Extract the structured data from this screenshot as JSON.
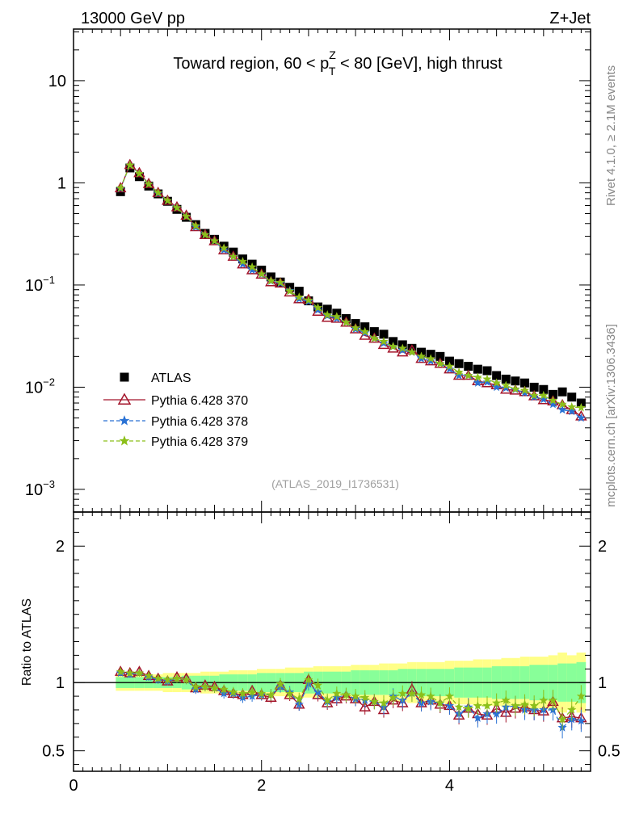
{
  "header": {
    "left": "13000 GeV pp",
    "right": "Z+Jet"
  },
  "side_labels": {
    "top": "Rivet 4.1.0, ≥ 2.1M events",
    "bottom": "mcplots.cern.ch [arXiv:1306.3436]"
  },
  "analysis_id": "(ATLAS_2019_I1736531)",
  "colors": {
    "atlas": "#000000",
    "p370": "#a3142a",
    "p378": "#2a72d4",
    "p379": "#8cbf1a",
    "band_outer": "#ffff88",
    "band_inner": "#88ff99"
  },
  "chart_data": [
    {
      "type": "scatter",
      "title_parts": {
        "pre": "Toward region, 60 < p",
        "sup": "Z",
        "sub": "T",
        "post": " < 80 [GeV], high thrust"
      },
      "yscale": "log",
      "ylim": [
        0.0006,
        32
      ],
      "xlim": [
        0,
        5.5
      ],
      "yticks": [
        {
          "v": 10,
          "base": "10",
          "exp": ""
        },
        {
          "v": 1,
          "base": "1",
          "exp": ""
        },
        {
          "v": 0.1,
          "base": "10",
          "exp": "−1"
        },
        {
          "v": 0.01,
          "base": "10",
          "exp": "−2"
        },
        {
          "v": 0.001,
          "base": "10",
          "exp": "−3"
        }
      ],
      "legend": [
        {
          "label": "ATLAS",
          "key": "atlas"
        },
        {
          "label": "Pythia 6.428 370",
          "key": "p370"
        },
        {
          "label": "Pythia 6.428 378",
          "key": "p378"
        },
        {
          "label": "Pythia 6.428 379",
          "key": "p379"
        }
      ],
      "x": [
        0.5,
        0.6,
        0.7,
        0.8,
        0.9,
        1.0,
        1.1,
        1.2,
        1.3,
        1.4,
        1.5,
        1.6,
        1.7,
        1.8,
        1.9,
        2.0,
        2.1,
        2.2,
        2.3,
        2.4,
        2.5,
        2.6,
        2.7,
        2.8,
        2.9,
        3.0,
        3.1,
        3.2,
        3.3,
        3.4,
        3.5,
        3.6,
        3.7,
        3.8,
        3.9,
        4.0,
        4.1,
        4.2,
        4.3,
        4.4,
        4.5,
        4.6,
        4.7,
        4.8,
        4.9,
        5.0,
        5.1,
        5.2,
        5.3,
        5.4
      ],
      "series": [
        {
          "name": "ATLAS",
          "key": "atlas",
          "values": [
            0.82,
            1.4,
            1.15,
            0.93,
            0.78,
            0.66,
            0.55,
            0.46,
            0.39,
            0.32,
            0.28,
            0.24,
            0.21,
            0.18,
            0.16,
            0.14,
            0.12,
            0.107,
            0.095,
            0.087,
            0.07,
            0.061,
            0.058,
            0.053,
            0.047,
            0.042,
            0.039,
            0.035,
            0.033,
            0.028,
            0.026,
            0.024,
            0.022,
            0.021,
            0.02,
            0.018,
            0.017,
            0.016,
            0.015,
            0.0145,
            0.013,
            0.012,
            0.0115,
            0.011,
            0.01,
            0.0095,
            0.0085,
            0.009,
            0.008,
            0.007
          ]
        },
        {
          "name": "Pythia 6.428 370",
          "key": "p370",
          "values": [
            0.89,
            1.5,
            1.25,
            0.98,
            0.8,
            0.67,
            0.58,
            0.48,
            0.37,
            0.31,
            0.27,
            0.22,
            0.19,
            0.16,
            0.14,
            0.127,
            0.107,
            0.104,
            0.085,
            0.073,
            0.072,
            0.055,
            0.048,
            0.047,
            0.043,
            0.037,
            0.032,
            0.03,
            0.026,
            0.024,
            0.022,
            0.023,
            0.019,
            0.018,
            0.017,
            0.015,
            0.013,
            0.013,
            0.0115,
            0.011,
            0.0105,
            0.0095,
            0.0093,
            0.009,
            0.0082,
            0.0075,
            0.0073,
            0.0067,
            0.006,
            0.0052
          ]
        },
        {
          "name": "Pythia 6.428 378",
          "key": "p378",
          "values": [
            0.88,
            1.49,
            1.23,
            0.97,
            0.79,
            0.67,
            0.57,
            0.47,
            0.37,
            0.31,
            0.27,
            0.22,
            0.19,
            0.16,
            0.14,
            0.127,
            0.109,
            0.104,
            0.088,
            0.073,
            0.069,
            0.057,
            0.05,
            0.047,
            0.043,
            0.037,
            0.034,
            0.03,
            0.027,
            0.025,
            0.023,
            0.022,
            0.019,
            0.018,
            0.017,
            0.015,
            0.013,
            0.013,
            0.011,
            0.0112,
            0.01,
            0.0098,
            0.0095,
            0.0088,
            0.008,
            0.0076,
            0.0068,
            0.006,
            0.0058,
            0.005
          ]
        },
        {
          "name": "Pythia 6.428 379",
          "key": "p379",
          "values": [
            0.89,
            1.49,
            1.23,
            0.97,
            0.8,
            0.67,
            0.57,
            0.47,
            0.38,
            0.31,
            0.27,
            0.23,
            0.19,
            0.17,
            0.15,
            0.128,
            0.11,
            0.106,
            0.087,
            0.076,
            0.071,
            0.06,
            0.051,
            0.049,
            0.043,
            0.038,
            0.035,
            0.03,
            0.028,
            0.025,
            0.024,
            0.022,
            0.02,
            0.019,
            0.017,
            0.016,
            0.014,
            0.013,
            0.0125,
            0.012,
            0.011,
            0.0104,
            0.0096,
            0.0093,
            0.0083,
            0.0083,
            0.0074,
            0.0068,
            0.0064,
            0.0063
          ]
        }
      ]
    },
    {
      "type": "scatter",
      "ylabel": "Ratio to ATLAS",
      "ylim": [
        0.35,
        2.25
      ],
      "xlim": [
        0,
        5.5
      ],
      "xticks": [
        0,
        2,
        4
      ],
      "yticks": [
        0.5,
        1,
        2
      ],
      "x": [
        0.5,
        0.6,
        0.7,
        0.8,
        0.9,
        1.0,
        1.1,
        1.2,
        1.3,
        1.4,
        1.5,
        1.6,
        1.7,
        1.8,
        1.9,
        2.0,
        2.1,
        2.2,
        2.3,
        2.4,
        2.5,
        2.6,
        2.7,
        2.8,
        2.9,
        3.0,
        3.1,
        3.2,
        3.3,
        3.4,
        3.5,
        3.6,
        3.7,
        3.8,
        3.9,
        4.0,
        4.1,
        4.2,
        4.3,
        4.4,
        4.5,
        4.6,
        4.7,
        4.8,
        4.9,
        5.0,
        5.1,
        5.2,
        5.3,
        5.4
      ],
      "band_inner": [
        0.04,
        0.04,
        0.04,
        0.04,
        0.04,
        0.04,
        0.04,
        0.05,
        0.05,
        0.05,
        0.05,
        0.06,
        0.06,
        0.06,
        0.06,
        0.07,
        0.07,
        0.07,
        0.07,
        0.07,
        0.08,
        0.08,
        0.08,
        0.08,
        0.08,
        0.09,
        0.09,
        0.09,
        0.09,
        0.09,
        0.1,
        0.1,
        0.1,
        0.1,
        0.1,
        0.1,
        0.11,
        0.11,
        0.11,
        0.11,
        0.12,
        0.12,
        0.12,
        0.12,
        0.13,
        0.13,
        0.13,
        0.14,
        0.14,
        0.15
      ],
      "band_outer": [
        0.06,
        0.06,
        0.06,
        0.06,
        0.06,
        0.07,
        0.07,
        0.07,
        0.07,
        0.08,
        0.08,
        0.08,
        0.09,
        0.09,
        0.09,
        0.1,
        0.1,
        0.1,
        0.11,
        0.11,
        0.11,
        0.12,
        0.12,
        0.12,
        0.12,
        0.13,
        0.13,
        0.13,
        0.14,
        0.14,
        0.14,
        0.15,
        0.15,
        0.15,
        0.15,
        0.16,
        0.16,
        0.16,
        0.17,
        0.17,
        0.17,
        0.18,
        0.18,
        0.19,
        0.19,
        0.19,
        0.2,
        0.22,
        0.2,
        0.22
      ],
      "series": [
        {
          "name": "Pythia 6.428 370",
          "key": "p370",
          "values": [
            1.08,
            1.07,
            1.08,
            1.05,
            1.03,
            1.01,
            1.04,
            1.03,
            0.96,
            0.98,
            0.97,
            0.94,
            0.92,
            0.91,
            0.94,
            0.91,
            0.89,
            0.98,
            0.91,
            0.84,
            1.02,
            0.91,
            0.85,
            0.88,
            0.9,
            0.88,
            0.82,
            0.86,
            0.8,
            0.87,
            0.85,
            0.95,
            0.85,
            0.87,
            0.84,
            0.83,
            0.76,
            0.81,
            0.77,
            0.76,
            0.81,
            0.78,
            0.81,
            0.82,
            0.8,
            0.79,
            0.86,
            0.74,
            0.75,
            0.74
          ]
        },
        {
          "name": "Pythia 6.428 378",
          "key": "p378",
          "values": [
            1.07,
            1.06,
            1.07,
            1.04,
            1.02,
            1.01,
            1.03,
            1.02,
            0.95,
            0.97,
            0.96,
            0.92,
            0.92,
            0.89,
            0.9,
            0.91,
            0.91,
            0.97,
            0.93,
            0.84,
            0.99,
            0.93,
            0.86,
            0.89,
            0.91,
            0.88,
            0.87,
            0.86,
            0.82,
            0.9,
            0.87,
            0.92,
            0.85,
            0.86,
            0.85,
            0.83,
            0.77,
            0.82,
            0.74,
            0.77,
            0.77,
            0.82,
            0.83,
            0.8,
            0.8,
            0.8,
            0.8,
            0.67,
            0.73,
            0.72
          ]
        },
        {
          "name": "Pythia 6.428 379",
          "key": "p379",
          "values": [
            1.08,
            1.07,
            1.07,
            1.05,
            1.03,
            1.02,
            1.03,
            1.02,
            0.97,
            0.97,
            0.96,
            0.95,
            0.93,
            0.92,
            0.93,
            0.92,
            0.91,
            0.99,
            0.92,
            0.88,
            1.02,
            0.98,
            0.87,
            0.92,
            0.91,
            0.9,
            0.89,
            0.86,
            0.85,
            0.89,
            0.92,
            0.92,
            0.91,
            0.9,
            0.85,
            0.9,
            0.82,
            0.81,
            0.83,
            0.83,
            0.85,
            0.87,
            0.83,
            0.84,
            0.83,
            0.87,
            0.87,
            0.73,
            0.8,
            0.9
          ]
        }
      ]
    }
  ]
}
